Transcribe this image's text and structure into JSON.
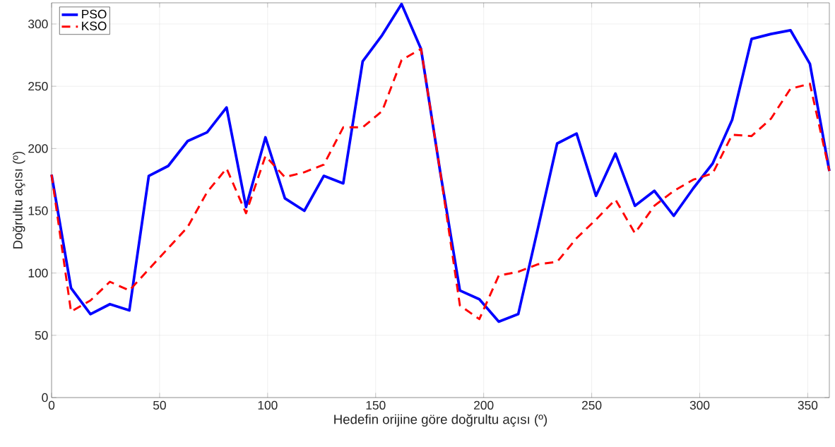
{
  "chart_data": {
    "type": "line",
    "xlabel": "Hedefin orijine göre doğrultu açısı (º)",
    "ylabel": "Doğrultu açısı (º)",
    "x": [
      0,
      9,
      18,
      27,
      36,
      45,
      54,
      63,
      72,
      81,
      90,
      99,
      108,
      117,
      126,
      135,
      144,
      153,
      162,
      171,
      180,
      189,
      198,
      207,
      216,
      225,
      234,
      243,
      252,
      261,
      270,
      279,
      288,
      297,
      306,
      315,
      324,
      333,
      342,
      351,
      360
    ],
    "series": [
      {
        "name": "PSO",
        "color": "#0000ff",
        "line_style": "solid",
        "values": [
          179,
          88,
          67,
          75,
          70,
          178,
          186,
          206,
          213,
          233,
          153,
          209,
          160,
          150,
          178,
          172,
          270,
          291,
          316,
          280,
          180,
          86,
          79,
          61,
          67,
          135,
          204,
          212,
          162,
          196,
          154,
          166,
          146,
          168,
          188,
          223,
          288,
          292,
          295,
          268,
          182
        ]
      },
      {
        "name": "KSO",
        "color": "#ff0000",
        "line_style": "dashed",
        "values": [
          179,
          69,
          78,
          93,
          86,
          103,
          120,
          137,
          165,
          184,
          148,
          194,
          177,
          181,
          187,
          217,
          217,
          230,
          271,
          280,
          180,
          74,
          63,
          98,
          101,
          107,
          109,
          128,
          143,
          159,
          132,
          154,
          166,
          175,
          180,
          211,
          210,
          224,
          248,
          252,
          182
        ]
      }
    ],
    "xlim": [
      0,
      360
    ],
    "ylim": [
      0,
      317
    ],
    "xticks": [
      0,
      50,
      100,
      150,
      200,
      250,
      300,
      350
    ],
    "yticks": [
      0,
      50,
      100,
      150,
      200,
      250,
      300
    ],
    "grid": true,
    "legend": "top left",
    "marker": "none"
  }
}
